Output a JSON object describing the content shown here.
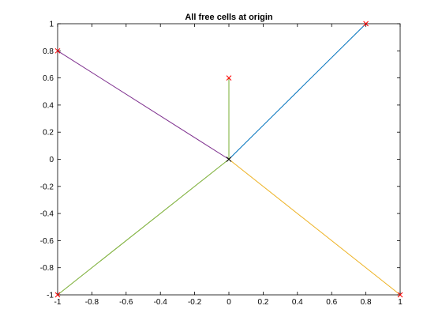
{
  "chart_data": {
    "type": "line",
    "title": "All free cells at origin",
    "xlabel": "",
    "ylabel": "",
    "xlim": [
      -1,
      1
    ],
    "ylim": [
      -1,
      1
    ],
    "xticks": [
      -1,
      -0.8,
      -0.6,
      -0.4,
      -0.2,
      0,
      0.2,
      0.4,
      0.6,
      0.8,
      1
    ],
    "yticks": [
      -1,
      -0.8,
      -0.6,
      -0.4,
      -0.2,
      0,
      0.2,
      0.4,
      0.6,
      0.8,
      1
    ],
    "xtick_labels": [
      "-1",
      "-0.8",
      "-0.6",
      "-0.4",
      "-0.2",
      "0",
      "0.2",
      "0.4",
      "0.6",
      "0.8",
      "1"
    ],
    "ytick_labels": [
      "-1",
      "-0.8",
      "-0.6",
      "-0.4",
      "-0.2",
      "0",
      "0.2",
      "0.4",
      "0.6",
      "0.8",
      "1"
    ],
    "grid": false,
    "box": true,
    "origin": {
      "x": 0,
      "y": 0,
      "marker": "x",
      "color": "#000000"
    },
    "series": [
      {
        "x": [
          0,
          0.8
        ],
        "y": [
          0,
          1
        ],
        "color": "#0072BD"
      },
      {
        "x": [
          0,
          1
        ],
        "y": [
          0,
          -1
        ],
        "color": "#EDB120"
      },
      {
        "x": [
          0,
          -1
        ],
        "y": [
          0,
          0.8
        ],
        "color": "#7E2F8E"
      },
      {
        "x": [
          0,
          -1
        ],
        "y": [
          0,
          -1
        ],
        "color": "#77AC30"
      },
      {
        "x": [
          0,
          0
        ],
        "y": [
          0,
          0.6
        ],
        "color": "#77AC30"
      }
    ],
    "endpoint_markers": {
      "marker": "x",
      "color": "#FF0000"
    }
  }
}
